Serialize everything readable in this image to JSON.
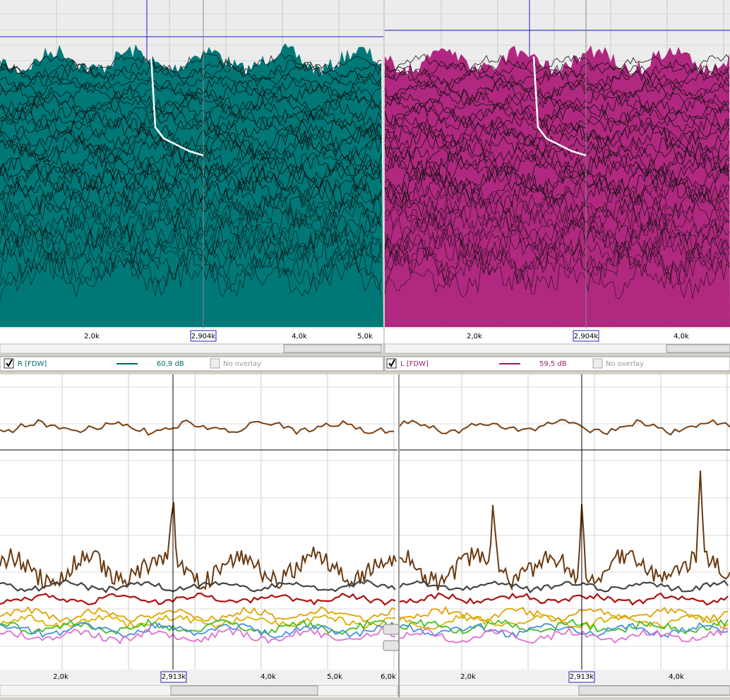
{
  "top_panels": [
    {
      "axis_labels": [
        "2,0k",
        "4,0k",
        "5,0k"
      ],
      "cursor": "2,904k",
      "legend": {
        "name": "R [FDW]",
        "level": "60,9 dB",
        "overlay": "No overlay"
      }
    },
    {
      "axis_labels": [
        "2,0k",
        "4,0k"
      ],
      "cursor": "2,904k",
      "legend": {
        "name": "L [FDW]",
        "level": "59,5 dB",
        "overlay": "No overlay"
      }
    }
  ],
  "bottom_panels": [
    {
      "axis_labels": [
        "2,0k",
        "4,0k",
        "5,0k",
        "6,0k"
      ],
      "cursor": "2,913k"
    },
    {
      "axis_labels": [
        "2,0k",
        "4,0k"
      ],
      "cursor": "2,913k"
    }
  ]
}
